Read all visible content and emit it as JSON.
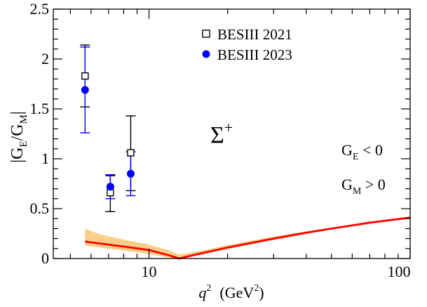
{
  "chart_data": {
    "type": "scatter",
    "xscale": "log",
    "xlim": [
      4.3,
      100
    ],
    "ylim": [
      0,
      2.5
    ],
    "xlabel": {
      "main": "q",
      "sup": "2",
      "unit_pre": "(GeV",
      "unit_sup": "2",
      "unit_post": ")"
    },
    "ylabel": {
      "pre": "|G",
      "sub1": "E",
      "mid": "/G",
      "sub2": "M",
      "post": "|"
    },
    "xticks": [
      {
        "value": 10,
        "label": "10"
      },
      {
        "value": 100,
        "label": "100"
      }
    ],
    "yticks": [
      {
        "value": 0,
        "label": "0"
      },
      {
        "value": 0.5,
        "label": "0.5"
      },
      {
        "value": 1,
        "label": "1"
      },
      {
        "value": 1.5,
        "label": "1.5"
      },
      {
        "value": 2,
        "label": "2"
      },
      {
        "value": 2.5,
        "label": "2.5"
      }
    ],
    "legend": {
      "position": "top-right",
      "entries": [
        {
          "label": "BESIII 2021",
          "marker": "open-square",
          "color": "#000000"
        },
        {
          "label": "BESIII 2023",
          "marker": "filled-circle",
          "color": "#0000ff"
        }
      ]
    },
    "series": [
      {
        "name": "BESIII 2021",
        "marker": "open-square",
        "color": "#000000",
        "points": [
          {
            "x": 5.69,
            "y": 1.83,
            "err_low": 1.52,
            "err_high": 2.14
          },
          {
            "x": 7.11,
            "y": 0.66,
            "err_low": 0.47,
            "err_high": 0.83
          },
          {
            "x": 8.51,
            "y": 1.06,
            "err_low": 0.68,
            "err_high": 1.43
          }
        ]
      },
      {
        "name": "BESIII 2023",
        "marker": "filled-circle",
        "color": "#0000ff",
        "points": [
          {
            "x": 5.69,
            "y": 1.69,
            "err_low": 1.26,
            "err_high": 2.12
          },
          {
            "x": 7.11,
            "y": 0.72,
            "err_low": 0.6,
            "err_high": 0.84
          },
          {
            "x": 8.51,
            "y": 0.85,
            "err_low": 0.63,
            "err_high": 1.07
          }
        ]
      },
      {
        "type": "line",
        "color": "#ff0000",
        "points": [
          {
            "x": 5.69,
            "y": 0.17
          },
          {
            "x": 8.0,
            "y": 0.12
          },
          {
            "x": 10.0,
            "y": 0.085
          },
          {
            "x": 12.0,
            "y": 0.03
          },
          {
            "x": 13.0,
            "y": 0.0
          },
          {
            "x": 16.0,
            "y": 0.055
          },
          {
            "x": 20.0,
            "y": 0.11
          },
          {
            "x": 30.0,
            "y": 0.2
          },
          {
            "x": 40.0,
            "y": 0.26
          },
          {
            "x": 50.0,
            "y": 0.3
          },
          {
            "x": 70.0,
            "y": 0.36
          },
          {
            "x": 100.0,
            "y": 0.41
          }
        ]
      },
      {
        "type": "band",
        "color": "#f5a623",
        "upper": [
          {
            "x": 5.69,
            "y": 0.3
          },
          {
            "x": 6.5,
            "y": 0.24
          },
          {
            "x": 8.0,
            "y": 0.19
          },
          {
            "x": 10.0,
            "y": 0.14
          },
          {
            "x": 12.0,
            "y": 0.08
          },
          {
            "x": 13.0,
            "y": 0.04
          },
          {
            "x": 16.0,
            "y": 0.08
          },
          {
            "x": 20.0,
            "y": 0.135
          },
          {
            "x": 30.0,
            "y": 0.22
          },
          {
            "x": 50.0,
            "y": 0.31
          },
          {
            "x": 100.0,
            "y": 0.415
          }
        ],
        "lower": [
          {
            "x": 5.69,
            "y": 0.13
          },
          {
            "x": 6.5,
            "y": 0.11
          },
          {
            "x": 8.0,
            "y": 0.08
          },
          {
            "x": 10.0,
            "y": 0.045
          },
          {
            "x": 12.0,
            "y": 0.01
          },
          {
            "x": 13.0,
            "y": 0.0
          },
          {
            "x": 16.0,
            "y": 0.04
          },
          {
            "x": 20.0,
            "y": 0.095
          },
          {
            "x": 30.0,
            "y": 0.185
          },
          {
            "x": 50.0,
            "y": 0.29
          },
          {
            "x": 100.0,
            "y": 0.405
          }
        ]
      }
    ],
    "annotations": {
      "particle": {
        "base": "Σ",
        "sup": "+"
      },
      "ge_condition": {
        "main": "G",
        "sub": "E",
        "rest": " < 0"
      },
      "gm_condition": {
        "main": "G",
        "sub": "M",
        "rest": " > 0"
      }
    }
  }
}
